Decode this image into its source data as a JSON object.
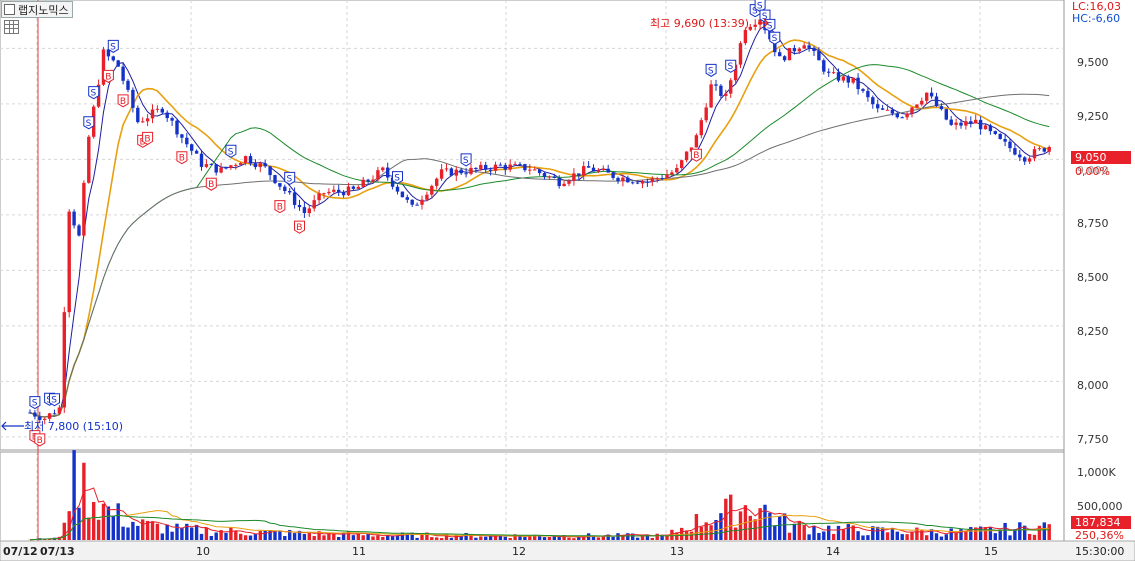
{
  "window": {
    "stock_name": "랩지노믹스",
    "lc_label": "LC:16,03",
    "hc_label": "HC:-6,60"
  },
  "price_axis": {
    "ticks": [
      "9,500",
      "9,250",
      "9,000",
      "8,750",
      "8,500",
      "8,250",
      "8,000",
      "7,750"
    ],
    "current_price": "9,050",
    "current_change": "0,00%"
  },
  "volume_axis": {
    "ticks": [
      "1,000K",
      "500,000"
    ],
    "current_volume": "187,834",
    "volume_ratio": "250,36%"
  },
  "time_axis": {
    "labels": [
      "07/12",
      "07/13",
      "10",
      "11",
      "12",
      "13",
      "14",
      "15"
    ],
    "last_time": "15:30:00"
  },
  "annotations": {
    "high_label": "최고 9,690 (13:39)",
    "low_label": "최저 7,800 (15:10)"
  },
  "signals": {
    "buy_letter": "B",
    "sell_letter": "S"
  },
  "colors": {
    "up": "#e8202a",
    "down": "#1432c8",
    "ma_short": "#1e1ea0",
    "ma_mid": "#e8a010",
    "ma_long": "#1a8a2a",
    "ma_longest": "#707070",
    "current_price_bg": "#e8202a",
    "grid": "#d6d6d6"
  },
  "chart_data": {
    "type": "candlestick",
    "yrange": [
      7700,
      9700
    ],
    "volume_range": [
      0,
      1200000
    ],
    "price_path": [
      {
        "t": 0,
        "p": 7860
      },
      {
        "t": 3,
        "p": 7835
      },
      {
        "t": 6,
        "p": 7880
      },
      {
        "t": 8,
        "p": 8780
      },
      {
        "t": 10,
        "p": 8650
      },
      {
        "t": 12,
        "p": 9100
      },
      {
        "t": 15,
        "p": 9480
      },
      {
        "t": 18,
        "p": 9420
      },
      {
        "t": 22,
        "p": 9170
      },
      {
        "t": 27,
        "p": 9230
      },
      {
        "t": 31,
        "p": 9100
      },
      {
        "t": 35,
        "p": 8980
      },
      {
        "t": 39,
        "p": 8950
      },
      {
        "t": 44,
        "p": 9010
      },
      {
        "t": 48,
        "p": 8960
      },
      {
        "t": 52,
        "p": 8860
      },
      {
        "t": 56,
        "p": 8760
      },
      {
        "t": 60,
        "p": 8850
      },
      {
        "t": 66,
        "p": 8860
      },
      {
        "t": 72,
        "p": 8950
      },
      {
        "t": 78,
        "p": 8780
      },
      {
        "t": 84,
        "p": 8940
      },
      {
        "t": 90,
        "p": 8950
      },
      {
        "t": 96,
        "p": 8970
      },
      {
        "t": 102,
        "p": 8960
      },
      {
        "t": 108,
        "p": 8900
      },
      {
        "t": 114,
        "p": 8960
      },
      {
        "t": 120,
        "p": 8920
      },
      {
        "t": 126,
        "p": 8900
      },
      {
        "t": 132,
        "p": 8950
      },
      {
        "t": 136,
        "p": 9100
      },
      {
        "t": 139,
        "p": 9330
      },
      {
        "t": 142,
        "p": 9280
      },
      {
        "t": 146,
        "p": 9600
      },
      {
        "t": 149,
        "p": 9640
      },
      {
        "t": 153,
        "p": 9450
      },
      {
        "t": 158,
        "p": 9530
      },
      {
        "t": 163,
        "p": 9380
      },
      {
        "t": 168,
        "p": 9350
      },
      {
        "t": 173,
        "p": 9220
      },
      {
        "t": 178,
        "p": 9200
      },
      {
        "t": 183,
        "p": 9300
      },
      {
        "t": 188,
        "p": 9150
      },
      {
        "t": 193,
        "p": 9170
      },
      {
        "t": 198,
        "p": 9080
      },
      {
        "t": 203,
        "p": 9010
      },
      {
        "t": 208,
        "p": 9060
      }
    ],
    "volume_profile": [
      {
        "t": 0,
        "v": 10000
      },
      {
        "t": 6,
        "v": 30000
      },
      {
        "t": 8,
        "v": 700000
      },
      {
        "t": 10,
        "v": 900000
      },
      {
        "t": 12,
        "v": 650000
      },
      {
        "t": 16,
        "v": 400000
      },
      {
        "t": 22,
        "v": 220000
      },
      {
        "t": 30,
        "v": 150000
      },
      {
        "t": 45,
        "v": 110000
      },
      {
        "t": 70,
        "v": 70000
      },
      {
        "t": 100,
        "v": 60000
      },
      {
        "t": 130,
        "v": 60000
      },
      {
        "t": 134,
        "v": 200000
      },
      {
        "t": 140,
        "v": 350000
      },
      {
        "t": 148,
        "v": 500000
      },
      {
        "t": 155,
        "v": 200000
      },
      {
        "t": 170,
        "v": 130000
      },
      {
        "t": 190,
        "v": 110000
      },
      {
        "t": 208,
        "v": 190000
      }
    ],
    "buy_signals_t": [
      1,
      2,
      16,
      19,
      23,
      24,
      31,
      37,
      51,
      55,
      136
    ],
    "sell_signals_t": [
      1,
      4,
      5,
      12,
      13,
      17,
      41,
      53,
      75,
      89,
      139,
      143,
      148,
      149,
      150,
      151,
      152
    ]
  }
}
